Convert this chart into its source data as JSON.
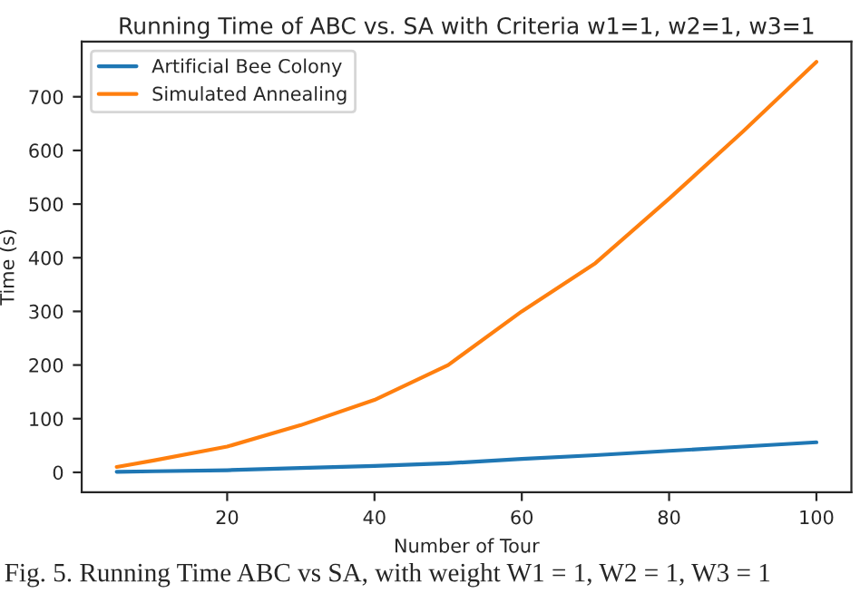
{
  "chart_data": {
    "type": "line",
    "title": "Running Time of ABC vs. SA with Criteria w1=1, w2=1, w3=1",
    "xlabel": "Number of Tour",
    "ylabel": "Time (s)",
    "annotations": [
      "Fig. 5. Running Time ABC vs SA, with weight W1 = 1, W2 = 1, W3 = 1"
    ],
    "x": [
      5,
      10,
      20,
      30,
      40,
      50,
      60,
      70,
      80,
      90,
      100
    ],
    "series": [
      {
        "name": "Artificial Bee Colony",
        "color": "#1f77b4",
        "values": [
          1,
          2,
          4,
          8,
          12,
          17,
          25,
          32,
          40,
          48,
          56
        ]
      },
      {
        "name": "Simulated Annealing",
        "color": "#ff7f0e",
        "values": [
          10,
          22,
          48,
          88,
          135,
          200,
          300,
          390,
          510,
          635,
          765
        ]
      }
    ],
    "xlim": [
      0.25,
      104.75
    ],
    "ylim": [
      -37,
      803
    ],
    "xticks": [
      20,
      40,
      60,
      80,
      100
    ],
    "yticks": [
      0,
      100,
      200,
      300,
      400,
      500,
      600,
      700
    ],
    "grid": false,
    "legend": "top left"
  }
}
